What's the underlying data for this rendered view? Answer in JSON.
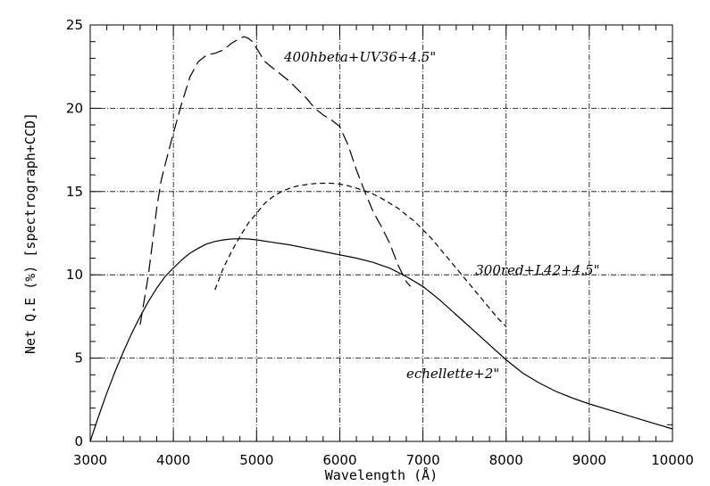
{
  "chart_data": {
    "type": "line",
    "xlabel": "Wavelength (Å)",
    "ylabel": "Net Q.E (%) [spectrograph+CCD]",
    "xlim": [
      3000,
      10000
    ],
    "ylim": [
      0,
      25
    ],
    "x_ticks": [
      "3000",
      "4000",
      "5000",
      "6000",
      "7000",
      "8000",
      "9000",
      "10000"
    ],
    "y_ticks": [
      "0",
      "5",
      "10",
      "15",
      "20",
      "25"
    ],
    "grid": "dash-dot at major ticks",
    "series": [
      {
        "name": "400hbeta+UV36+4.5\"",
        "dash": "long-dash",
        "label_at": [
          5330,
          22.8
        ],
        "x": [
          3600,
          3700,
          3800,
          3850,
          3900,
          4000,
          4100,
          4200,
          4300,
          4400,
          4500,
          4600,
          4700,
          4800,
          4850,
          4900,
          4950,
          5000,
          5050,
          5100,
          5200,
          5300,
          5400,
          5500,
          5600,
          5700,
          5800,
          5900,
          6000,
          6100,
          6200,
          6300,
          6400,
          6500,
          6600,
          6700,
          6800,
          6850
        ],
        "y": [
          7.0,
          10.0,
          14.0,
          15.6,
          16.6,
          18.5,
          20.3,
          21.9,
          22.8,
          23.2,
          23.3,
          23.5,
          23.9,
          24.2,
          24.3,
          24.2,
          24.0,
          23.6,
          23.2,
          22.8,
          22.4,
          22.0,
          21.6,
          21.1,
          20.6,
          20.0,
          19.6,
          19.3,
          18.9,
          17.8,
          16.3,
          15.0,
          13.8,
          12.9,
          11.9,
          10.6,
          9.6,
          9.3
        ]
      },
      {
        "name": "300red+L42+4.5\"",
        "dash": "short-dash",
        "label_at": [
          7630,
          10.0
        ],
        "x": [
          4500,
          4600,
          4700,
          4800,
          4900,
          5000,
          5100,
          5200,
          5300,
          5400,
          5500,
          5600,
          5700,
          5800,
          5900,
          6000,
          6100,
          6200,
          6300,
          6400,
          6500,
          6600,
          6700,
          6800,
          6900,
          7000,
          7100,
          7200,
          7300,
          7400,
          7500,
          7600,
          7700,
          7800,
          7900,
          8000
        ],
        "y": [
          9.1,
          10.4,
          11.4,
          12.3,
          13.1,
          13.7,
          14.3,
          14.7,
          15.0,
          15.2,
          15.35,
          15.42,
          15.48,
          15.5,
          15.5,
          15.45,
          15.35,
          15.2,
          15.05,
          14.85,
          14.6,
          14.3,
          14.0,
          13.6,
          13.2,
          12.7,
          12.2,
          11.6,
          11.0,
          10.4,
          9.8,
          9.2,
          8.6,
          8.0,
          7.4,
          6.9
        ]
      },
      {
        "name": "echellette+2\"",
        "dash": "solid",
        "label_at": [
          6800,
          3.8
        ],
        "x": [
          3000,
          3100,
          3200,
          3300,
          3400,
          3500,
          3600,
          3700,
          3800,
          3900,
          4000,
          4100,
          4200,
          4300,
          4400,
          4500,
          4600,
          4700,
          4800,
          4900,
          5000,
          5200,
          5400,
          5600,
          5800,
          6000,
          6200,
          6400,
          6600,
          6800,
          7000,
          7200,
          7400,
          7600,
          7800,
          8000,
          8200,
          8400,
          8600,
          8800,
          9000,
          9200,
          9400,
          9600,
          9800,
          10000
        ],
        "y": [
          0.0,
          1.5,
          2.9,
          4.2,
          5.4,
          6.5,
          7.5,
          8.4,
          9.2,
          9.9,
          10.4,
          10.9,
          11.3,
          11.6,
          11.85,
          12.0,
          12.1,
          12.15,
          12.17,
          12.15,
          12.1,
          11.95,
          11.8,
          11.6,
          11.4,
          11.2,
          11.0,
          10.75,
          10.4,
          9.9,
          9.3,
          8.5,
          7.6,
          6.7,
          5.8,
          4.9,
          4.1,
          3.5,
          3.0,
          2.6,
          2.25,
          1.95,
          1.65,
          1.35,
          1.05,
          0.75
        ]
      }
    ]
  }
}
